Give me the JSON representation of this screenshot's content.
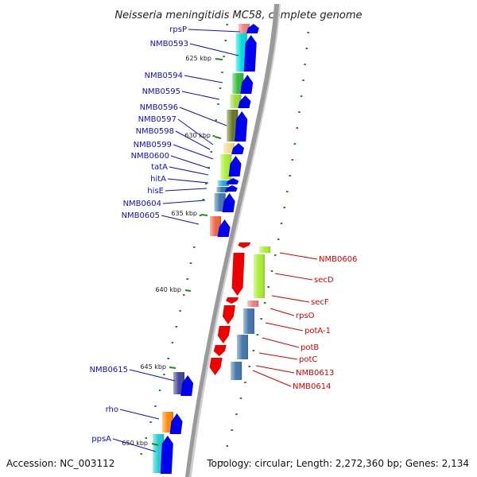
{
  "title": "Neisseria meningitidis MC58, complete genome",
  "footer": {
    "accession": "Accession: NC_003112",
    "summary": "Topology: circular; Length: 2,272,360 bp; Genes: 2,134"
  },
  "colors": {
    "forward_label": "#1010c0",
    "reverse_label": "#dd0000",
    "forward_arrow": "#0000ee",
    "reverse_arrow": "#ee0000",
    "tick": "#228b22",
    "backbone": "#888888"
  },
  "kbp_markers": [
    "625 kbp",
    "630 kbp",
    "635 kbp",
    "640 kbp",
    "645 kbp",
    "650 kbp"
  ],
  "forward_genes": [
    "rpsP",
    "NMB0593",
    "NMB0594",
    "NMB0595",
    "NMB0596",
    "NMB0597",
    "NMB0598",
    "NMB0599",
    "NMB0600",
    "tatA",
    "hitA",
    "hisE",
    "NMB0604",
    "NMB0605",
    "NMB0615",
    "rho",
    "ppsA"
  ],
  "reverse_genes": [
    "NMB0606",
    "secD",
    "secF",
    "rpsO",
    "potA-1",
    "potB",
    "potC",
    "NMB0613",
    "NMB0614"
  ]
}
